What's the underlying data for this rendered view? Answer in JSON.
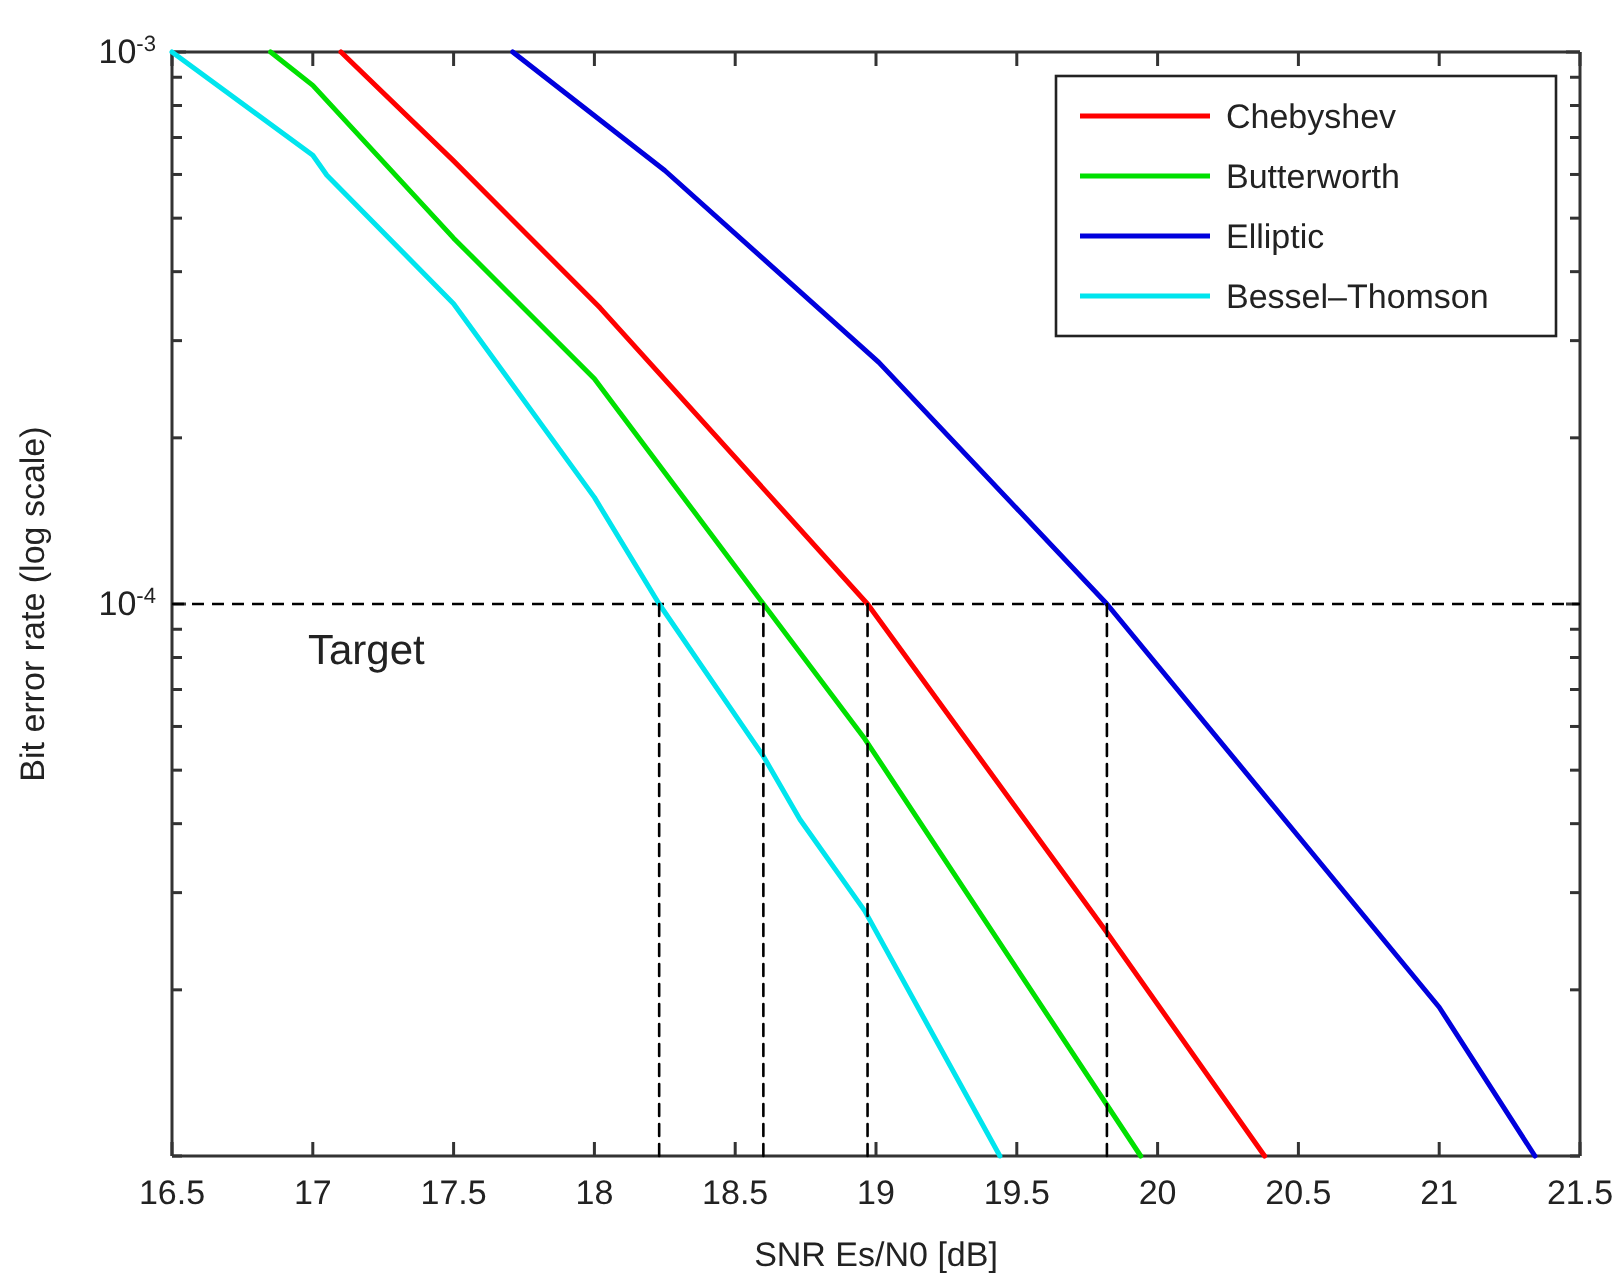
{
  "chart_data": {
    "type": "line",
    "xlabel": "SNR Es/N0 [dB]",
    "ylabel": "Bit error rate (log scale)",
    "log": "y",
    "legend": "top right",
    "line_style": "solid",
    "marker": "none",
    "xlim": [
      16.5,
      21.5
    ],
    "xticks": [
      16.5,
      17,
      17.5,
      18,
      18.5,
      19,
      19.5,
      20,
      20.5,
      21,
      21.5
    ],
    "ylim": [
      1e-05,
      0.001
    ],
    "yticks": [
      {
        "value": 1e-05,
        "label": null
      },
      {
        "value": 2e-05,
        "label": null
      },
      {
        "value": 3e-05,
        "label": null
      },
      {
        "value": 4e-05,
        "label": null
      },
      {
        "value": 5e-05,
        "label": null
      },
      {
        "value": 6e-05,
        "label": null
      },
      {
        "value": 7e-05,
        "label": null
      },
      {
        "value": 8e-05,
        "label": null
      },
      {
        "value": 9e-05,
        "label": null
      },
      {
        "value": 0.0001,
        "label": "10$^{-4}$"
      },
      {
        "value": 0.0002,
        "label": null
      },
      {
        "value": 0.0003,
        "label": null
      },
      {
        "value": 0.0004,
        "label": null
      },
      {
        "value": 0.0005,
        "label": null
      },
      {
        "value": 0.0006,
        "label": null
      },
      {
        "value": 0.0007,
        "label": null
      },
      {
        "value": 0.0008,
        "label": null
      },
      {
        "value": 0.0009,
        "label": null
      },
      {
        "value": 0.001,
        "label": "10$^{-3}$"
      }
    ],
    "ref_lines": [
      {
        "axis": "y",
        "value": 0.0001,
        "label": "Target",
        "color": "#000000",
        "line_style": "dashed"
      }
    ],
    "series": [
      {
        "name": "Chebyshev",
        "color": "#ff0000",
        "x": [
          17.1,
          17.5,
          18.02,
          18.97,
          19.82,
          20.38
        ],
        "values": [
          0.001,
          0.000635,
          0.000344,
          0.0001,
          2.54e-05,
          1e-05
        ]
      },
      {
        "name": "Butterworth",
        "color": "#00e000",
        "x": [
          16.85,
          17.0,
          17.5,
          18.0,
          18.6,
          18.96,
          19.94
        ],
        "values": [
          0.001,
          0.00087,
          0.00046,
          0.000256,
          0.0001,
          5.7e-05,
          1e-05
        ]
      },
      {
        "name": "Elliptic",
        "color": "#0000dd",
        "x": [
          17.71,
          18.25,
          18.73,
          19.01,
          19.82,
          20.51,
          21.0,
          21.34
        ],
        "values": [
          0.001,
          0.00061,
          0.000368,
          0.000274,
          0.0001,
          3.74e-05,
          1.86e-05,
          1e-05
        ]
      },
      {
        "name": "Bessel–Thomson",
        "color": "#00e5ee",
        "x": [
          16.5,
          17.0,
          17.05,
          17.5,
          18.0,
          18.23,
          18.6,
          18.73,
          18.96,
          19.44
        ],
        "values": [
          0.001,
          0.00065,
          0.000598,
          0.00035,
          0.000156,
          0.0001,
          5.3e-05,
          4.07e-05,
          2.78e-05,
          1e-05
        ]
      },
      {
        "color": "#000000",
        "line_style": "dashed",
        "x": [
          18.23,
          18.23
        ],
        "values": [
          1e-05,
          0.0001
        ]
      },
      {
        "color": "#000000",
        "line_style": "dashed",
        "x": [
          18.6,
          18.6
        ],
        "values": [
          1e-05,
          0.0001
        ]
      },
      {
        "color": "#000000",
        "line_style": "dashed",
        "x": [
          18.97,
          18.97
        ],
        "values": [
          1e-05,
          0.0001
        ]
      },
      {
        "color": "#000000",
        "line_style": "dashed",
        "x": [
          19.82,
          19.82
        ],
        "values": [
          1e-05,
          0.0001
        ]
      }
    ]
  }
}
